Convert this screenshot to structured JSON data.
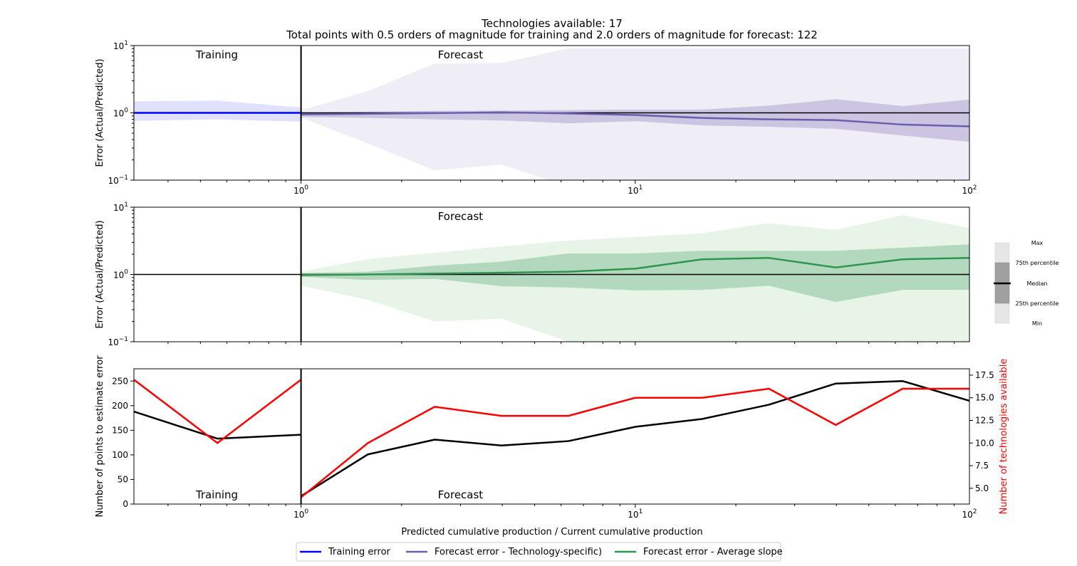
{
  "figure": {
    "title_line1": "Technologies available: 17",
    "title_line2": "Total points with 0.5 orders of magnitude for training  and 2.0 orders of magnitude for forecast: 122",
    "xlabel": "Predicted cumulative production / Current cumulative production"
  },
  "chart_data": [
    {
      "id": "panel1",
      "type": "area",
      "ylabel": "Error (Actual/Predicted)",
      "xscale": "log",
      "yscale": "log",
      "xlim": [
        0.3162,
        100
      ],
      "ylim": [
        0.1,
        10
      ],
      "x_ticks": [
        {
          "base": "10",
          "exp": "0",
          "value": 1
        },
        {
          "base": "10",
          "exp": "1",
          "value": 10
        },
        {
          "base": "10",
          "exp": "2",
          "value": 100
        }
      ],
      "y_ticks": [
        {
          "base": "10",
          "exp": "−1",
          "value": 0.1
        },
        {
          "base": "10",
          "exp": "0",
          "value": 1
        },
        {
          "base": "10",
          "exp": "1",
          "value": 10
        }
      ],
      "hline": 1,
      "vline": 1,
      "annotations": [
        {
          "text": "Training",
          "x": 0.56,
          "y": 7.0
        },
        {
          "text": "Forecast",
          "x": 3.0,
          "y": 7.0
        }
      ],
      "bands": [
        {
          "series": "training",
          "level": "min-max",
          "color": "#e0e0ff",
          "x": [
            0.3162,
            0.5623,
            1.0
          ],
          "lower": [
            0.76,
            0.8,
            0.74
          ],
          "upper": [
            1.48,
            1.52,
            1.2
          ]
        },
        {
          "series": "forecast_tech",
          "level": "min-max",
          "color": "#efedf6",
          "x": [
            1.0,
            1.585,
            2.512,
            3.981,
            6.31,
            10.0,
            15.85,
            25.12,
            39.81,
            63.1,
            100.0
          ],
          "lower": [
            0.85,
            0.35,
            0.14,
            0.17,
            0.08,
            0.08,
            0.08,
            0.08,
            0.08,
            0.08,
            0.08
          ],
          "upper": [
            1.1,
            2.1,
            5.4,
            5.5,
            9.1,
            9.1,
            9.1,
            9.1,
            9.1,
            9.1,
            9.1
          ]
        },
        {
          "series": "forecast_tech",
          "level": "25th-75th",
          "color": "#cbc5e2",
          "x": [
            1.0,
            1.585,
            2.512,
            3.981,
            6.31,
            10.0,
            15.85,
            25.12,
            39.81,
            63.1,
            100.0
          ],
          "lower": [
            0.87,
            0.84,
            0.8,
            0.77,
            0.7,
            0.75,
            0.65,
            0.62,
            0.58,
            0.46,
            0.37
          ],
          "upper": [
            1.0,
            1.04,
            1.07,
            1.08,
            1.1,
            1.12,
            1.12,
            1.28,
            1.6,
            1.26,
            1.58
          ]
        }
      ],
      "series": [
        {
          "key": "training",
          "color": "#0000ff",
          "x": [
            0.3162,
            0.5623,
            1.0
          ],
          "values": [
            1.0,
            1.0,
            1.0
          ]
        },
        {
          "key": "forecast_tech",
          "color": "#6a5fad",
          "x": [
            1.0,
            1.585,
            2.512,
            3.981,
            6.31,
            10.0,
            15.85,
            25.12,
            39.81,
            63.1,
            100.0
          ],
          "values": [
            0.95,
            0.97,
            0.99,
            1.02,
            0.98,
            0.93,
            0.84,
            0.8,
            0.78,
            0.67,
            0.63
          ]
        }
      ]
    },
    {
      "id": "panel2",
      "type": "area",
      "ylabel": "Error (Actual/Predicted)",
      "xscale": "log",
      "yscale": "log",
      "xlim": [
        0.3162,
        100
      ],
      "ylim": [
        0.1,
        10
      ],
      "y_ticks": [
        {
          "base": "10",
          "exp": "−1",
          "value": 0.1
        },
        {
          "base": "10",
          "exp": "0",
          "value": 1
        },
        {
          "base": "10",
          "exp": "1",
          "value": 10
        }
      ],
      "hline": 1,
      "vline": 1,
      "annotations": [
        {
          "text": "Forecast",
          "x": 3.0,
          "y": 7.0
        }
      ],
      "bands": [
        {
          "series": "forecast_avg",
          "level": "min-max",
          "color": "#e8f4e8",
          "x": [
            1.0,
            1.585,
            2.512,
            3.981,
            6.31,
            10.0,
            15.85,
            25.12,
            39.81,
            63.1,
            100.0
          ],
          "lower": [
            0.68,
            0.42,
            0.2,
            0.22,
            0.1,
            0.08,
            0.08,
            0.08,
            0.08,
            0.08,
            0.08
          ],
          "upper": [
            1.1,
            1.7,
            2.1,
            2.6,
            3.2,
            3.6,
            4.1,
            5.8,
            4.6,
            7.6,
            4.9
          ]
        },
        {
          "series": "forecast_avg",
          "level": "25th-75th",
          "color": "#b2d9bd",
          "x": [
            1.0,
            1.585,
            2.512,
            3.981,
            6.31,
            10.0,
            15.85,
            25.12,
            39.81,
            63.1,
            100.0
          ],
          "lower": [
            0.92,
            0.83,
            0.86,
            0.67,
            0.64,
            0.58,
            0.59,
            0.68,
            0.39,
            0.59,
            0.59
          ],
          "upper": [
            1.05,
            1.1,
            1.35,
            1.55,
            2.05,
            2.05,
            2.25,
            2.25,
            2.25,
            2.5,
            2.8
          ]
        }
      ],
      "series": [
        {
          "key": "forecast_avg",
          "color": "#2e9450",
          "x": [
            1.0,
            1.585,
            2.512,
            3.981,
            6.31,
            10.0,
            15.85,
            25.12,
            39.81,
            63.1,
            100.0
          ],
          "values": [
            0.98,
            1.0,
            1.03,
            1.06,
            1.1,
            1.22,
            1.68,
            1.76,
            1.27,
            1.68,
            1.76
          ]
        }
      ]
    },
    {
      "id": "panel3",
      "type": "line",
      "ylabel": "Number of points to estimate error",
      "y2label": "Number of technologies available",
      "xscale": "log",
      "xlim": [
        0.3162,
        100
      ],
      "ylim": [
        0,
        275
      ],
      "y2lim": [
        3.26,
        18.2
      ],
      "x_ticks": [
        {
          "base": "10",
          "exp": "0",
          "value": 1
        },
        {
          "base": "10",
          "exp": "1",
          "value": 10
        },
        {
          "base": "10",
          "exp": "2",
          "value": 100
        }
      ],
      "y_ticks": [
        {
          "label": "0",
          "value": 0
        },
        {
          "label": "50",
          "value": 50
        },
        {
          "label": "100",
          "value": 100
        },
        {
          "label": "150",
          "value": 150
        },
        {
          "label": "200",
          "value": 200
        },
        {
          "label": "250",
          "value": 250
        }
      ],
      "y2_ticks": [
        {
          "label": "5.0",
          "value": 5.0
        },
        {
          "label": "7.5",
          "value": 7.5
        },
        {
          "label": "10.0",
          "value": 10.0
        },
        {
          "label": "12.5",
          "value": 12.5
        },
        {
          "label": "15.0",
          "value": 15.0
        },
        {
          "label": "17.5",
          "value": 17.5
        }
      ],
      "vline": 1,
      "annotations": [
        {
          "text": "Training",
          "x": 0.56,
          "y": 18
        },
        {
          "text": "Forecast",
          "x": 3.0,
          "y": 18
        }
      ],
      "series": [
        {
          "key": "points_training",
          "axis": "left",
          "color": "#000000",
          "x": [
            0.3162,
            0.5623,
            1.0
          ],
          "values": [
            188,
            133,
            141
          ]
        },
        {
          "key": "points_forecast",
          "axis": "left",
          "color": "#000000",
          "x": [
            1.0,
            1.585,
            2.512,
            3.981,
            6.31,
            10.0,
            15.85,
            25.12,
            39.81,
            63.1,
            100.0
          ],
          "values": [
            16,
            101,
            131,
            119,
            128,
            157,
            173,
            202,
            245,
            250,
            210
          ]
        },
        {
          "key": "techs_training",
          "axis": "right",
          "color": "#ff0000",
          "x": [
            0.3162,
            0.5623,
            1.0
          ],
          "values": [
            17,
            10,
            17
          ]
        },
        {
          "key": "techs_forecast",
          "axis": "right",
          "color": "#ff0000",
          "x": [
            1.0,
            1.585,
            2.512,
            3.981,
            6.31,
            10.0,
            15.85,
            25.12,
            39.81,
            63.1,
            100.0
          ],
          "values": [
            4,
            10,
            14,
            13,
            13,
            15,
            15,
            16,
            12,
            16,
            16
          ]
        }
      ]
    }
  ],
  "box_legend": {
    "labels": [
      "Max",
      "75th percentile",
      "Median",
      "25th percentile",
      "Min"
    ],
    "outer_color": "#e6e6e6",
    "inner_color": "#a0a0a0"
  },
  "legend": {
    "placement": "bottom-center",
    "items": [
      {
        "label": "Training error",
        "color": "#0000ff"
      },
      {
        "label": "Forecast error - Technology-specific)",
        "color": "#6a5fad"
      },
      {
        "label": "Forecast error - Average slope",
        "color": "#2e9450"
      }
    ]
  }
}
